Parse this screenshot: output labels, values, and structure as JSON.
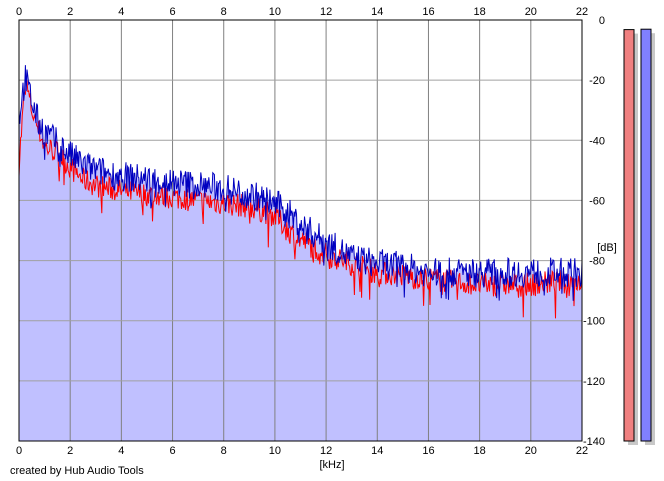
{
  "chart_data": {
    "type": "line",
    "xlabel": "[kHz]",
    "ylabel": "[dB]",
    "xlim": [
      0,
      22
    ],
    "ylim": [
      -140,
      0
    ],
    "x_ticks": [
      0,
      2,
      4,
      6,
      8,
      10,
      12,
      14,
      16,
      18,
      20,
      22
    ],
    "y_ticks": [
      0,
      -20,
      -40,
      -60,
      -80,
      -100,
      -120,
      -140
    ],
    "grid": true,
    "x_tick_positions": "top-and-bottom",
    "y_tick_positions": "right",
    "series": [
      {
        "color": "#ff0000",
        "x": [
          0.0,
          0.25,
          0.5,
          0.75,
          1.0,
          1.5,
          2.0,
          2.5,
          3.0,
          3.5,
          4.0,
          5.0,
          6.0,
          7.0,
          8.0,
          9.0,
          10.0,
          10.5,
          11.0,
          12.0,
          13.0,
          14.0,
          15.0,
          16.0,
          17.0,
          18.0,
          19.0,
          20.0,
          21.0,
          22.0
        ],
        "values": [
          -48,
          -20,
          -30,
          -36,
          -42,
          -44,
          -49,
          -53,
          -55,
          -56,
          -57,
          -58,
          -59,
          -60,
          -61,
          -62,
          -65,
          -70,
          -73,
          -78,
          -81,
          -84,
          -85,
          -86,
          -87,
          -88,
          -88,
          -88,
          -87,
          -87
        ]
      },
      {
        "color": "#0000c0",
        "x": [
          0.0,
          0.25,
          0.5,
          0.75,
          1.0,
          1.5,
          2.0,
          2.5,
          3.0,
          3.5,
          4.0,
          5.0,
          6.0,
          7.0,
          8.0,
          9.0,
          10.0,
          10.5,
          11.0,
          12.0,
          13.0,
          14.0,
          15.0,
          16.0,
          17.0,
          18.0,
          19.0,
          20.0,
          21.0,
          22.0
        ],
        "values": [
          -32,
          -19,
          -27,
          -34,
          -37,
          -41,
          -45,
          -48,
          -50,
          -51,
          -52,
          -53,
          -54,
          -55,
          -56,
          -58,
          -61,
          -64,
          -68,
          -74,
          -79,
          -81,
          -82,
          -84,
          -84,
          -84,
          -84,
          -84,
          -84,
          -84
        ]
      }
    ],
    "fill_color": "#c0c0ff"
  },
  "meter": {
    "left_color": "#f08080",
    "right_color": "#8080ff",
    "left_level_db": -4,
    "right_level_db": -3
  },
  "footer": {
    "credit": "created by Hub Audio Tools"
  }
}
